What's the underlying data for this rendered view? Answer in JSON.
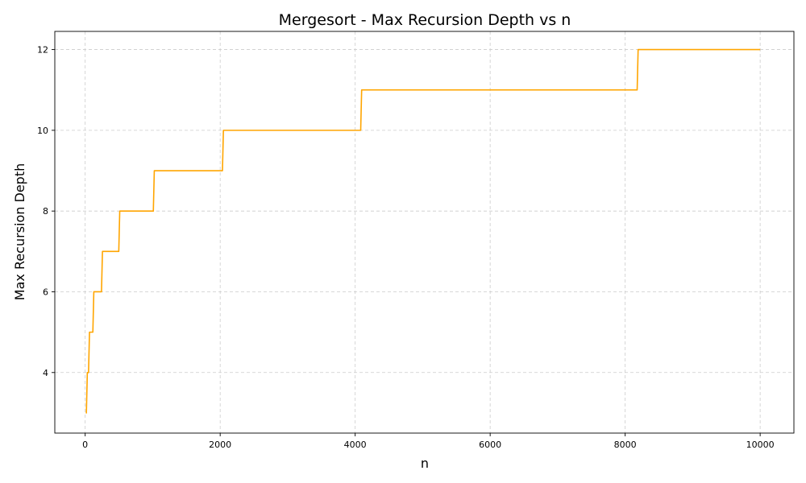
{
  "chart_data": {
    "type": "line",
    "title": "Mergesort - Max Recursion Depth vs n",
    "xlabel": "n",
    "ylabel": "Max Recursion Depth",
    "xlim": [
      -450,
      10500
    ],
    "ylim": [
      2.5,
      12.45
    ],
    "xticks": [
      0,
      2000,
      4000,
      6000,
      8000,
      10000
    ],
    "yticks": [
      4,
      6,
      8,
      10,
      12
    ],
    "grid": true,
    "series": [
      {
        "color": "#ffa500",
        "step_points": [
          [
            10,
            3
          ],
          [
            32,
            4
          ],
          [
            64,
            5
          ],
          [
            128,
            6
          ],
          [
            256,
            7
          ],
          [
            512,
            8
          ],
          [
            1024,
            9
          ],
          [
            2048,
            10
          ],
          [
            4096,
            11
          ],
          [
            8192,
            12
          ],
          [
            10000,
            12
          ]
        ]
      }
    ]
  }
}
